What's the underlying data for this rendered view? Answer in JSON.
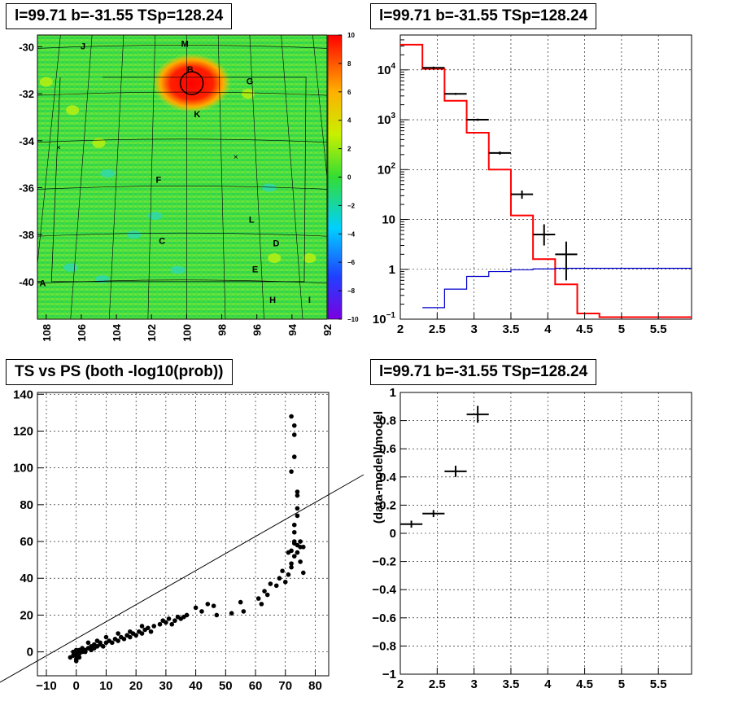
{
  "chart_data": [
    {
      "type": "heatmap",
      "title": "l=99.71 b=-31.55 TSp=128.24",
      "xticks": [
        "108",
        "106",
        "104",
        "102",
        "100",
        "98",
        "96",
        "94",
        "92"
      ],
      "xlim": [
        92,
        108.5
      ],
      "yticks": [
        "-30",
        "-32",
        "-34",
        "-36",
        "-38",
        "-40"
      ],
      "ylim": [
        -41.6,
        -29.5
      ],
      "colorbar_ticks": [
        "10",
        "8",
        "6",
        "4",
        "2",
        "0",
        "−2",
        "−4",
        "−6",
        "−8",
        "−10"
      ],
      "colorbar_range": [
        -10,
        10
      ],
      "source": {
        "l": 99.71,
        "b": -31.55,
        "peak": 10
      },
      "letters": [
        {
          "t": "J",
          "l": 105.9,
          "b": -30.1
        },
        {
          "t": "M",
          "l": 100.1,
          "b": -30.0
        },
        {
          "t": "B",
          "l": 99.8,
          "b": -31.1
        },
        {
          "t": "G",
          "l": 96.4,
          "b": -31.6
        },
        {
          "t": "K",
          "l": 99.4,
          "b": -33.0
        },
        {
          "t": "F",
          "l": 101.6,
          "b": -35.8
        },
        {
          "t": "L",
          "l": 96.3,
          "b": -37.5
        },
        {
          "t": "C",
          "l": 101.4,
          "b": -38.4
        },
        {
          "t": "D",
          "l": 94.9,
          "b": -38.5
        },
        {
          "t": "E",
          "l": 96.1,
          "b": -39.6
        },
        {
          "t": "A",
          "l": 108.2,
          "b": -40.2
        },
        {
          "t": "H",
          "l": 95.1,
          "b": -40.9
        },
        {
          "t": "I",
          "l": 93.0,
          "b": -40.9
        }
      ],
      "crosses": [
        {
          "l": 107.3,
          "b": -34.3
        },
        {
          "l": 97.2,
          "b": -34.7
        }
      ]
    },
    {
      "type": "line",
      "title": "l=99.71 b=-31.55 TSp=128.24",
      "xticks": [
        "2",
        "2.5",
        "3",
        "3.5",
        "4",
        "4.5",
        "5",
        "5.5"
      ],
      "xlim": [
        2,
        5.95
      ],
      "ylog": true,
      "ylim": [
        0.1,
        50000
      ],
      "yticks": [
        {
          "v": 10000,
          "base": "10",
          "exp": "4"
        },
        {
          "v": 1000,
          "base": "10",
          "exp": "3"
        },
        {
          "v": 100,
          "base": "10",
          "exp": "2"
        },
        {
          "v": 10,
          "base": "10",
          "exp": ""
        },
        {
          "v": 1,
          "base": "1",
          "exp": ""
        },
        {
          "v": 0.1,
          "base": "10",
          "exp": "−1"
        }
      ],
      "data_points": [
        {
          "x": 2.45,
          "y": 11000,
          "xerr": 0.15,
          "ylo": 10400,
          "yhi": 11600
        },
        {
          "x": 2.75,
          "y": 3300,
          "xerr": 0.15,
          "ylo": 3150,
          "yhi": 3450
        },
        {
          "x": 3.05,
          "y": 1000,
          "xerr": 0.15,
          "ylo": 950,
          "yhi": 1050
        },
        {
          "x": 3.35,
          "y": 215,
          "xerr": 0.15,
          "ylo": 200,
          "yhi": 230
        },
        {
          "x": 3.65,
          "y": 32,
          "xerr": 0.15,
          "ylo": 26,
          "yhi": 38
        },
        {
          "x": 3.95,
          "y": 5,
          "xerr": 0.15,
          "ylo": 3,
          "yhi": 8
        },
        {
          "x": 4.25,
          "y": 2,
          "xerr": 0.15,
          "ylo": 0.6,
          "yhi": 3.6
        }
      ],
      "series": [
        {
          "color": "#ff0000",
          "edges": [
            2,
            2.3,
            2.6,
            2.9,
            3.2,
            3.5,
            3.8,
            4.1,
            4.4,
            4.7,
            5.95
          ],
          "values": [
            32000,
            10500,
            2400,
            550,
            100,
            12,
            1.6,
            0.5,
            0.13,
            0.11
          ]
        },
        {
          "color": "#0000cc",
          "edges": [
            2.3,
            2.6,
            2.9,
            3.2,
            3.5,
            3.8,
            4.1,
            5.95
          ],
          "values": [
            0.17,
            0.4,
            0.72,
            0.9,
            0.98,
            1.02,
            1.05
          ]
        }
      ]
    },
    {
      "type": "scatter",
      "title": "TS vs PS (both -log10(prob))",
      "xticks": [
        -10,
        0,
        10,
        20,
        30,
        40,
        50,
        60,
        70,
        80
      ],
      "xlim": [
        -13,
        84.5
      ],
      "yticks": [
        0,
        20,
        40,
        60,
        80,
        100,
        120,
        140
      ],
      "ylim": [
        -13,
        141
      ],
      "line": [
        [
          -13,
          -12
        ],
        [
          96,
          96
        ]
      ],
      "points": [
        [
          -2,
          -3
        ],
        [
          -1,
          -2
        ],
        [
          0,
          -4
        ],
        [
          0,
          -2
        ],
        [
          0,
          0
        ],
        [
          1,
          -1
        ],
        [
          1,
          1
        ],
        [
          0,
          1
        ],
        [
          -1,
          0
        ],
        [
          2,
          0
        ],
        [
          1,
          -3
        ],
        [
          2,
          2
        ],
        [
          3,
          1
        ],
        [
          0,
          -5
        ],
        [
          3,
          0
        ],
        [
          4,
          2
        ],
        [
          5,
          1
        ],
        [
          5,
          3
        ],
        [
          6,
          2
        ],
        [
          6,
          4
        ],
        [
          7,
          3
        ],
        [
          8,
          4
        ],
        [
          8,
          5
        ],
        [
          9,
          3
        ],
        [
          10,
          5
        ],
        [
          11,
          6
        ],
        [
          12,
          5
        ],
        [
          13,
          7
        ],
        [
          14,
          6
        ],
        [
          15,
          8
        ],
        [
          16,
          7
        ],
        [
          17,
          9
        ],
        [
          18,
          8
        ],
        [
          19,
          10
        ],
        [
          20,
          9
        ],
        [
          21,
          11
        ],
        [
          22,
          10
        ],
        [
          23,
          12
        ],
        [
          24,
          13
        ],
        [
          25,
          11
        ],
        [
          26,
          14
        ],
        [
          28,
          15
        ],
        [
          30,
          16
        ],
        [
          31,
          18
        ],
        [
          33,
          17
        ],
        [
          34,
          19
        ],
        [
          35,
          18
        ],
        [
          37,
          20
        ],
        [
          4,
          5
        ],
        [
          7,
          6
        ],
        [
          10,
          8
        ],
        [
          14,
          10
        ],
        [
          18,
          11
        ],
        [
          22,
          14
        ],
        [
          29,
          17
        ],
        [
          32,
          15
        ],
        [
          36,
          19
        ],
        [
          40,
          24
        ],
        [
          42,
          22
        ],
        [
          44,
          26
        ],
        [
          46,
          25
        ],
        [
          47,
          20
        ],
        [
          52,
          21
        ],
        [
          55,
          27
        ],
        [
          56,
          22
        ],
        [
          61,
          29
        ],
        [
          62,
          26
        ],
        [
          63,
          33
        ],
        [
          64,
          31
        ],
        [
          65,
          37
        ],
        [
          67,
          36
        ],
        [
          68,
          40
        ],
        [
          69,
          44
        ],
        [
          70,
          38
        ],
        [
          71,
          42
        ],
        [
          72,
          46
        ],
        [
          72,
          48
        ],
        [
          72,
          55
        ],
        [
          73,
          52
        ],
        [
          73,
          60
        ],
        [
          73,
          65
        ],
        [
          73,
          69
        ],
        [
          74,
          74
        ],
        [
          74,
          78
        ],
        [
          74,
          85
        ],
        [
          74,
          87
        ],
        [
          72,
          98
        ],
        [
          73,
          106
        ],
        [
          73,
          118
        ],
        [
          73,
          123
        ],
        [
          72,
          128
        ],
        [
          75,
          57
        ],
        [
          75,
          60
        ],
        [
          76,
          57
        ],
        [
          74,
          54
        ],
        [
          75,
          49
        ],
        [
          76,
          43
        ],
        [
          71,
          54
        ],
        [
          73,
          59
        ],
        [
          74,
          58
        ]
      ]
    },
    {
      "type": "scatter",
      "title": "l=99.71 b=-31.55 TSp=128.24",
      "xticks": [
        "2",
        "2.5",
        "3",
        "3.5",
        "4",
        "4.5",
        "5",
        "5.5"
      ],
      "xlim": [
        2,
        5.95
      ],
      "yticks": [
        "1",
        "0.8",
        "0.6",
        "0.4",
        "0.2",
        "0",
        "−0.2",
        "−0.4",
        "−0.6",
        "−0.8",
        "−1"
      ],
      "ylim": [
        -1,
        1
      ],
      "ylabel": "(data-model)/model",
      "points": [
        {
          "x": 2.15,
          "y": 0.065,
          "xerr": 0.15,
          "yerr": 0.025
        },
        {
          "x": 2.45,
          "y": 0.14,
          "xerr": 0.15,
          "yerr": 0.025
        },
        {
          "x": 2.75,
          "y": 0.44,
          "xerr": 0.15,
          "yerr": 0.04
        },
        {
          "x": 3.05,
          "y": 0.845,
          "xerr": 0.15,
          "yerr": 0.06
        }
      ]
    }
  ]
}
